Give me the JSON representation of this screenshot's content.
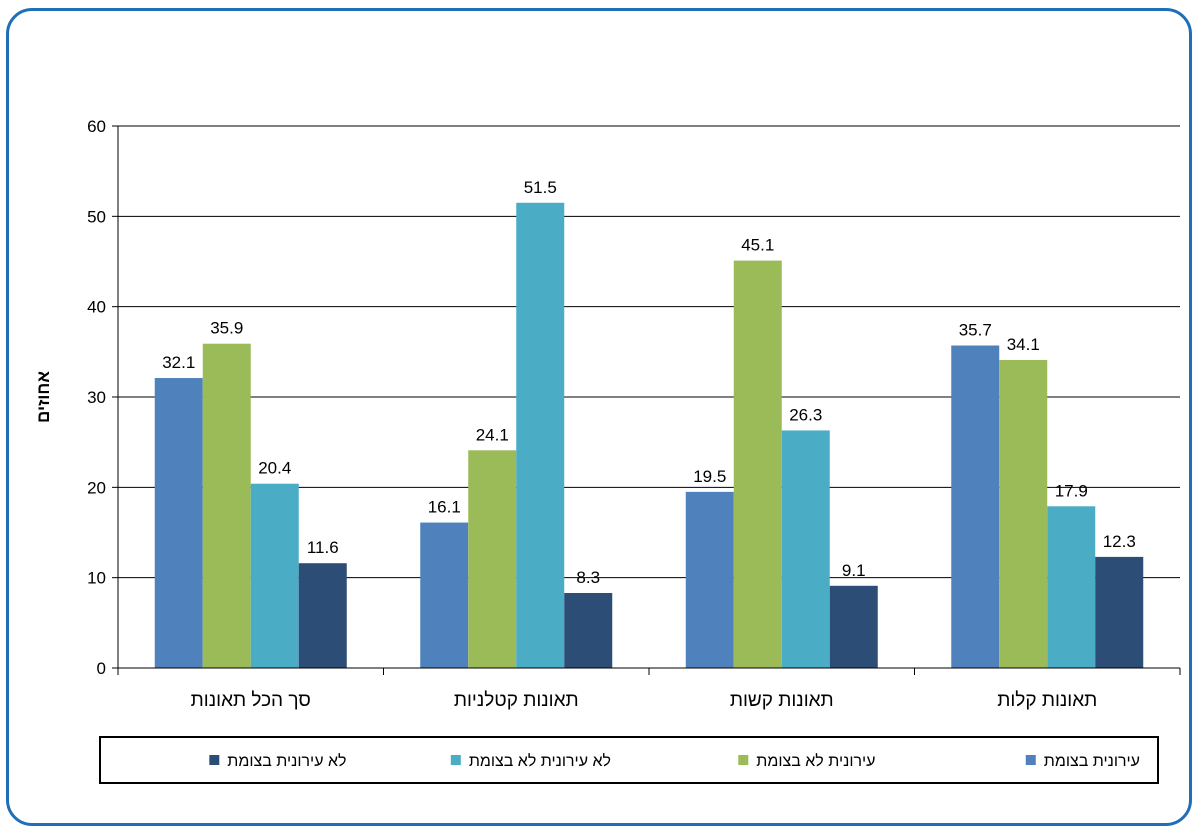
{
  "chart_data": {
    "type": "bar",
    "categories": [
      "סך הכל תאונות",
      "תאונות קטלניות",
      "תאונות קשות",
      "תאונות קלות"
    ],
    "series": [
      {
        "name": "עירונית בצומת",
        "color": "#4f81bd",
        "values": [
          32.1,
          16.1,
          19.5,
          35.7
        ]
      },
      {
        "name": "עירונית לא בצומת",
        "color": "#9bbb59",
        "values": [
          35.9,
          24.1,
          45.1,
          34.1
        ]
      },
      {
        "name": "לא עירונית לא בצומת",
        "color": "#4bacc6",
        "values": [
          20.4,
          51.5,
          26.3,
          17.9
        ]
      },
      {
        "name": "לא עירונית בצומת",
        "color": "#2c4d75",
        "values": [
          11.6,
          8.3,
          9.1,
          12.3
        ]
      }
    ],
    "yticks": [
      0,
      10,
      20,
      30,
      40,
      50,
      60
    ],
    "ylim": [
      0,
      60
    ],
    "ylabel": "אחוזים",
    "xlabel": "",
    "grid": true,
    "legend": "bottom"
  }
}
